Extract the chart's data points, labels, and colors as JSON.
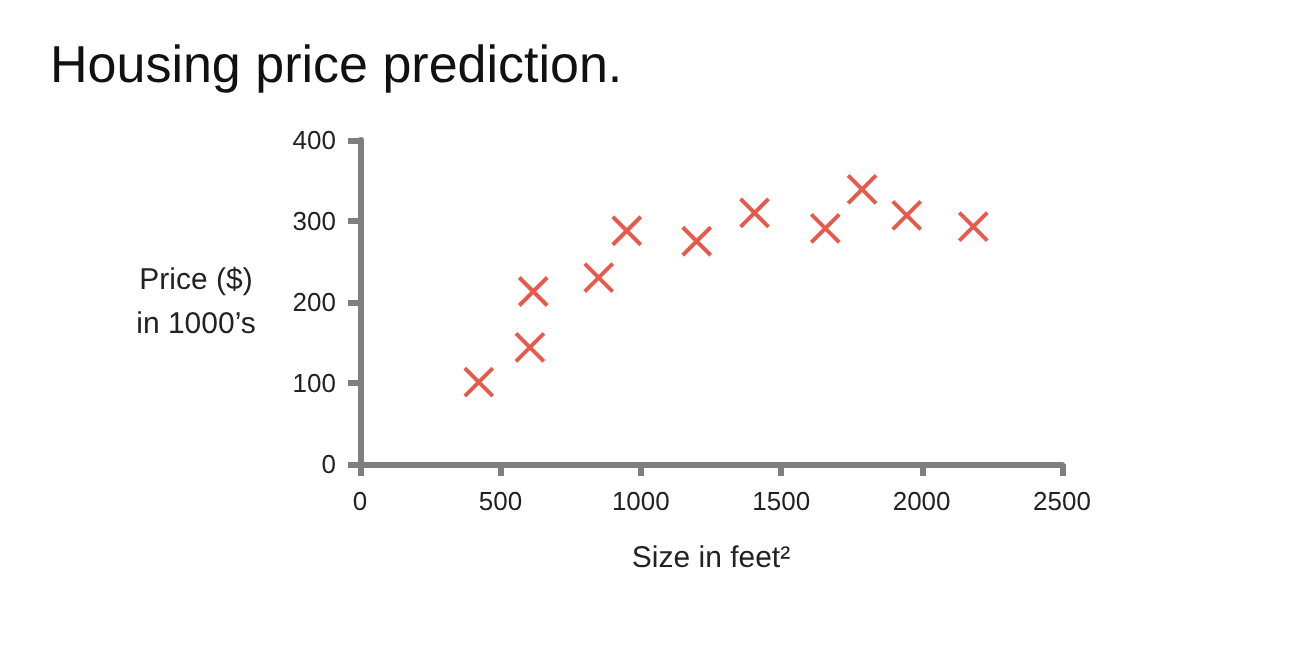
{
  "chart_data": {
    "type": "scatter",
    "title": "Housing price prediction.",
    "xlabel": "Size in feet²",
    "ylabel": "Price ($)\nin 1000’s",
    "x": [
      423,
      605,
      617,
      850,
      950,
      1199,
      1405,
      1657,
      1788,
      1947,
      2184
    ],
    "series": [
      {
        "color": "#e0301e",
        "values": [
          101,
          144,
          213,
          230,
          288,
          275,
          310,
          291,
          339,
          307,
          293
        ]
      }
    ],
    "xlim": [
      0,
      2500
    ],
    "xticks": [
      0,
      500,
      1000,
      1500,
      2000,
      2500
    ],
    "ylim": [
      0,
      400
    ],
    "yticks": [
      0,
      100,
      200,
      300,
      400
    ],
    "marker": "cross"
  }
}
